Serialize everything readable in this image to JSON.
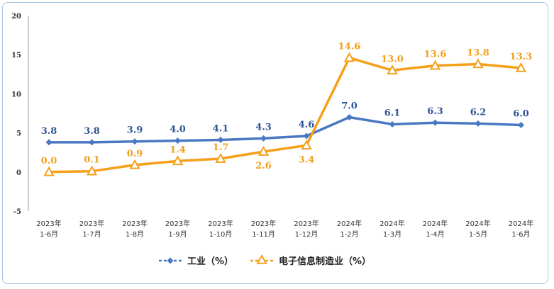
{
  "chart_data": {
    "type": "line",
    "title": "",
    "xlabel": "",
    "ylabel": "",
    "ylim": [
      -5,
      20
    ],
    "yticks": [
      "20",
      "15",
      "10",
      "5",
      "0",
      "-5"
    ],
    "ytick_values": [
      20,
      15,
      10,
      5,
      0,
      -5
    ],
    "categories": [
      [
        "2023年",
        "1-6月"
      ],
      [
        "2023年",
        "1-7月"
      ],
      [
        "2023年",
        "1-8月"
      ],
      [
        "2023年",
        "1-9月"
      ],
      [
        "2023年",
        "1-10月"
      ],
      [
        "2023年",
        "1-11月"
      ],
      [
        "2023年",
        "1-12月"
      ],
      [
        "2024年",
        "1-2月"
      ],
      [
        "2024年",
        "1-3月"
      ],
      [
        "2024年",
        "1-4月"
      ],
      [
        "2024年",
        "1-5月"
      ],
      [
        "2024年",
        "1-6月"
      ]
    ],
    "series": [
      {
        "name": "工业（%）",
        "color": "#4a78c2",
        "marker": "diamond",
        "values": [
          3.8,
          3.8,
          3.9,
          4.0,
          4.1,
          4.3,
          4.6,
          7.0,
          6.1,
          6.3,
          6.2,
          6.0
        ],
        "labels": [
          "3.8",
          "3.8",
          "3.9",
          "4.0",
          "4.1",
          "4.3",
          "4.6",
          "7.0",
          "6.1",
          "6.3",
          "6.2",
          "6.0"
        ],
        "label_color": "#2f5597",
        "label_position": "above"
      },
      {
        "name": "电子信息制造业（%）",
        "color": "#f5a01a",
        "marker": "triangle",
        "values": [
          0.0,
          0.1,
          0.9,
          1.4,
          1.7,
          2.6,
          3.4,
          14.6,
          13.0,
          13.6,
          13.8,
          13.3
        ],
        "labels": [
          "0.0",
          "0.1",
          "0.9",
          "1.4",
          "1.7",
          "2.6",
          "3.4",
          "14.6",
          "13.0",
          "13.6",
          "13.8",
          "13.3"
        ],
        "label_color": "#f0a01c",
        "label_position": "mixed"
      }
    ],
    "legend": {
      "placement": "bottom-center"
    },
    "grid": false
  }
}
